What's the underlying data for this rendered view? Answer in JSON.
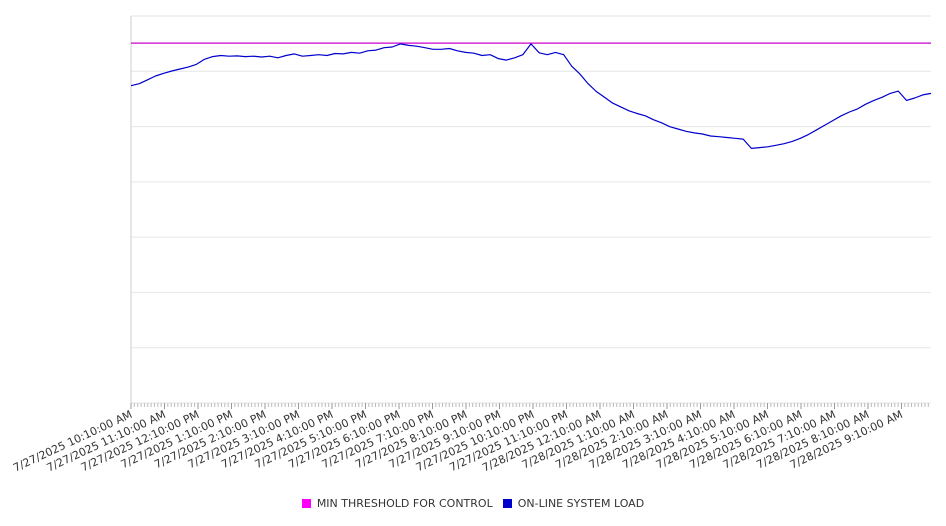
{
  "chart_data": {
    "type": "line",
    "title": "",
    "xlabel": "",
    "ylabel": "",
    "grid": true,
    "legend_position": "bottom",
    "x_start": "7/27/2025 10:10:00 AM",
    "x_end": "7/28/2025 10:10:00 AM",
    "xtick_labels": [
      "7/27/2025 10:10:00 AM",
      "7/27/2025 11:10:00 AM",
      "7/27/2025 12:10:00 PM",
      "7/27/2025 1:10:00 PM",
      "7/27/2025 2:10:00 PM",
      "7/27/2025 3:10:00 PM",
      "7/27/2025 4:10:00 PM",
      "7/27/2025 5:10:00 PM",
      "7/27/2025 6:10:00 PM",
      "7/27/2025 7:10:00 PM",
      "7/27/2025 8:10:00 PM",
      "7/27/2025 9:10:00 PM",
      "7/27/2025 10:10:00 PM",
      "7/27/2025 11:10:00 PM",
      "7/28/2025 12:10:00 AM",
      "7/28/2025 1:10:00 AM",
      "7/28/2025 2:10:00 AM",
      "7/28/2025 3:10:00 AM",
      "7/28/2025 4:10:00 AM",
      "7/28/2025 5:10:00 AM",
      "7/28/2025 6:10:00 AM",
      "7/28/2025 7:10:00 AM",
      "7/28/2025 8:10:00 AM",
      "7/28/2025 9:10:00 AM"
    ],
    "y_gridlines": 7,
    "series": [
      {
        "name": "MIN THRESHOLD FOR CONTROL",
        "color": "#cc00cc",
        "values": [
          0.93,
          0.93
        ]
      },
      {
        "name": "ON-LINE SYSTEM LOAD",
        "color": "#0000cc",
        "values": [
          0.82,
          0.825,
          0.835,
          0.845,
          0.852,
          0.858,
          0.863,
          0.868,
          0.875,
          0.888,
          0.895,
          0.898,
          0.896,
          0.897,
          0.895,
          0.896,
          0.894,
          0.896,
          0.892,
          0.898,
          0.902,
          0.896,
          0.898,
          0.9,
          0.898,
          0.903,
          0.902,
          0.906,
          0.904,
          0.91,
          0.912,
          0.918,
          0.92,
          0.928,
          0.924,
          0.922,
          0.918,
          0.914,
          0.914,
          0.916,
          0.91,
          0.906,
          0.904,
          0.898,
          0.9,
          0.89,
          0.886,
          0.892,
          0.9,
          0.928,
          0.905,
          0.9,
          0.906,
          0.9,
          0.87,
          0.85,
          0.825,
          0.805,
          0.79,
          0.775,
          0.765,
          0.755,
          0.748,
          0.742,
          0.732,
          0.724,
          0.714,
          0.708,
          0.702,
          0.698,
          0.695,
          0.69,
          0.688,
          0.686,
          0.684,
          0.682,
          0.658,
          0.66,
          0.662,
          0.666,
          0.67,
          0.676,
          0.684,
          0.694,
          0.706,
          0.718,
          0.73,
          0.742,
          0.752,
          0.76,
          0.772,
          0.782,
          0.79,
          0.8,
          0.806,
          0.782,
          0.788,
          0.796,
          0.8
        ]
      }
    ]
  }
}
